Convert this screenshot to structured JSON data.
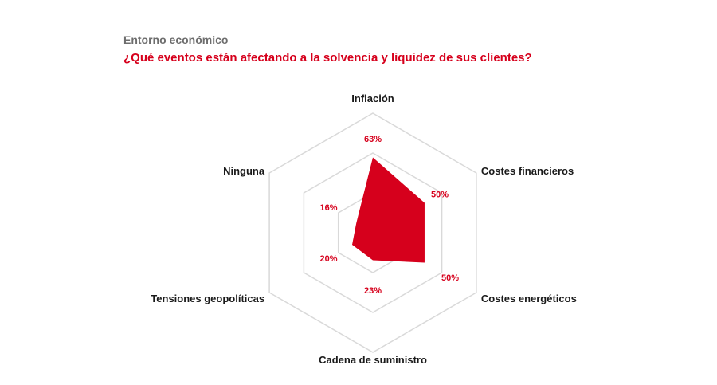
{
  "header": {
    "section": "Entorno económico",
    "question": "¿Qué eventos están afectando a la solvencia y liquidez de sus clientes?"
  },
  "colors": {
    "accent": "#d6001c",
    "grid": "#d9d9d9",
    "text": "#1a1a1a",
    "section": "#6d6d6d"
  },
  "chart_data": {
    "type": "radar",
    "title": "",
    "max": 100,
    "rings": 3,
    "categories": [
      "Inflación",
      "Costes financieros",
      "Costes energéticos",
      "Cadena de suministro",
      "Tensiones geopolíticas",
      "Ninguna"
    ],
    "values": [
      63,
      50,
      50,
      23,
      20,
      16
    ],
    "value_labels": [
      "63%",
      "50%",
      "50%",
      "23%",
      "20%",
      "16%"
    ]
  }
}
